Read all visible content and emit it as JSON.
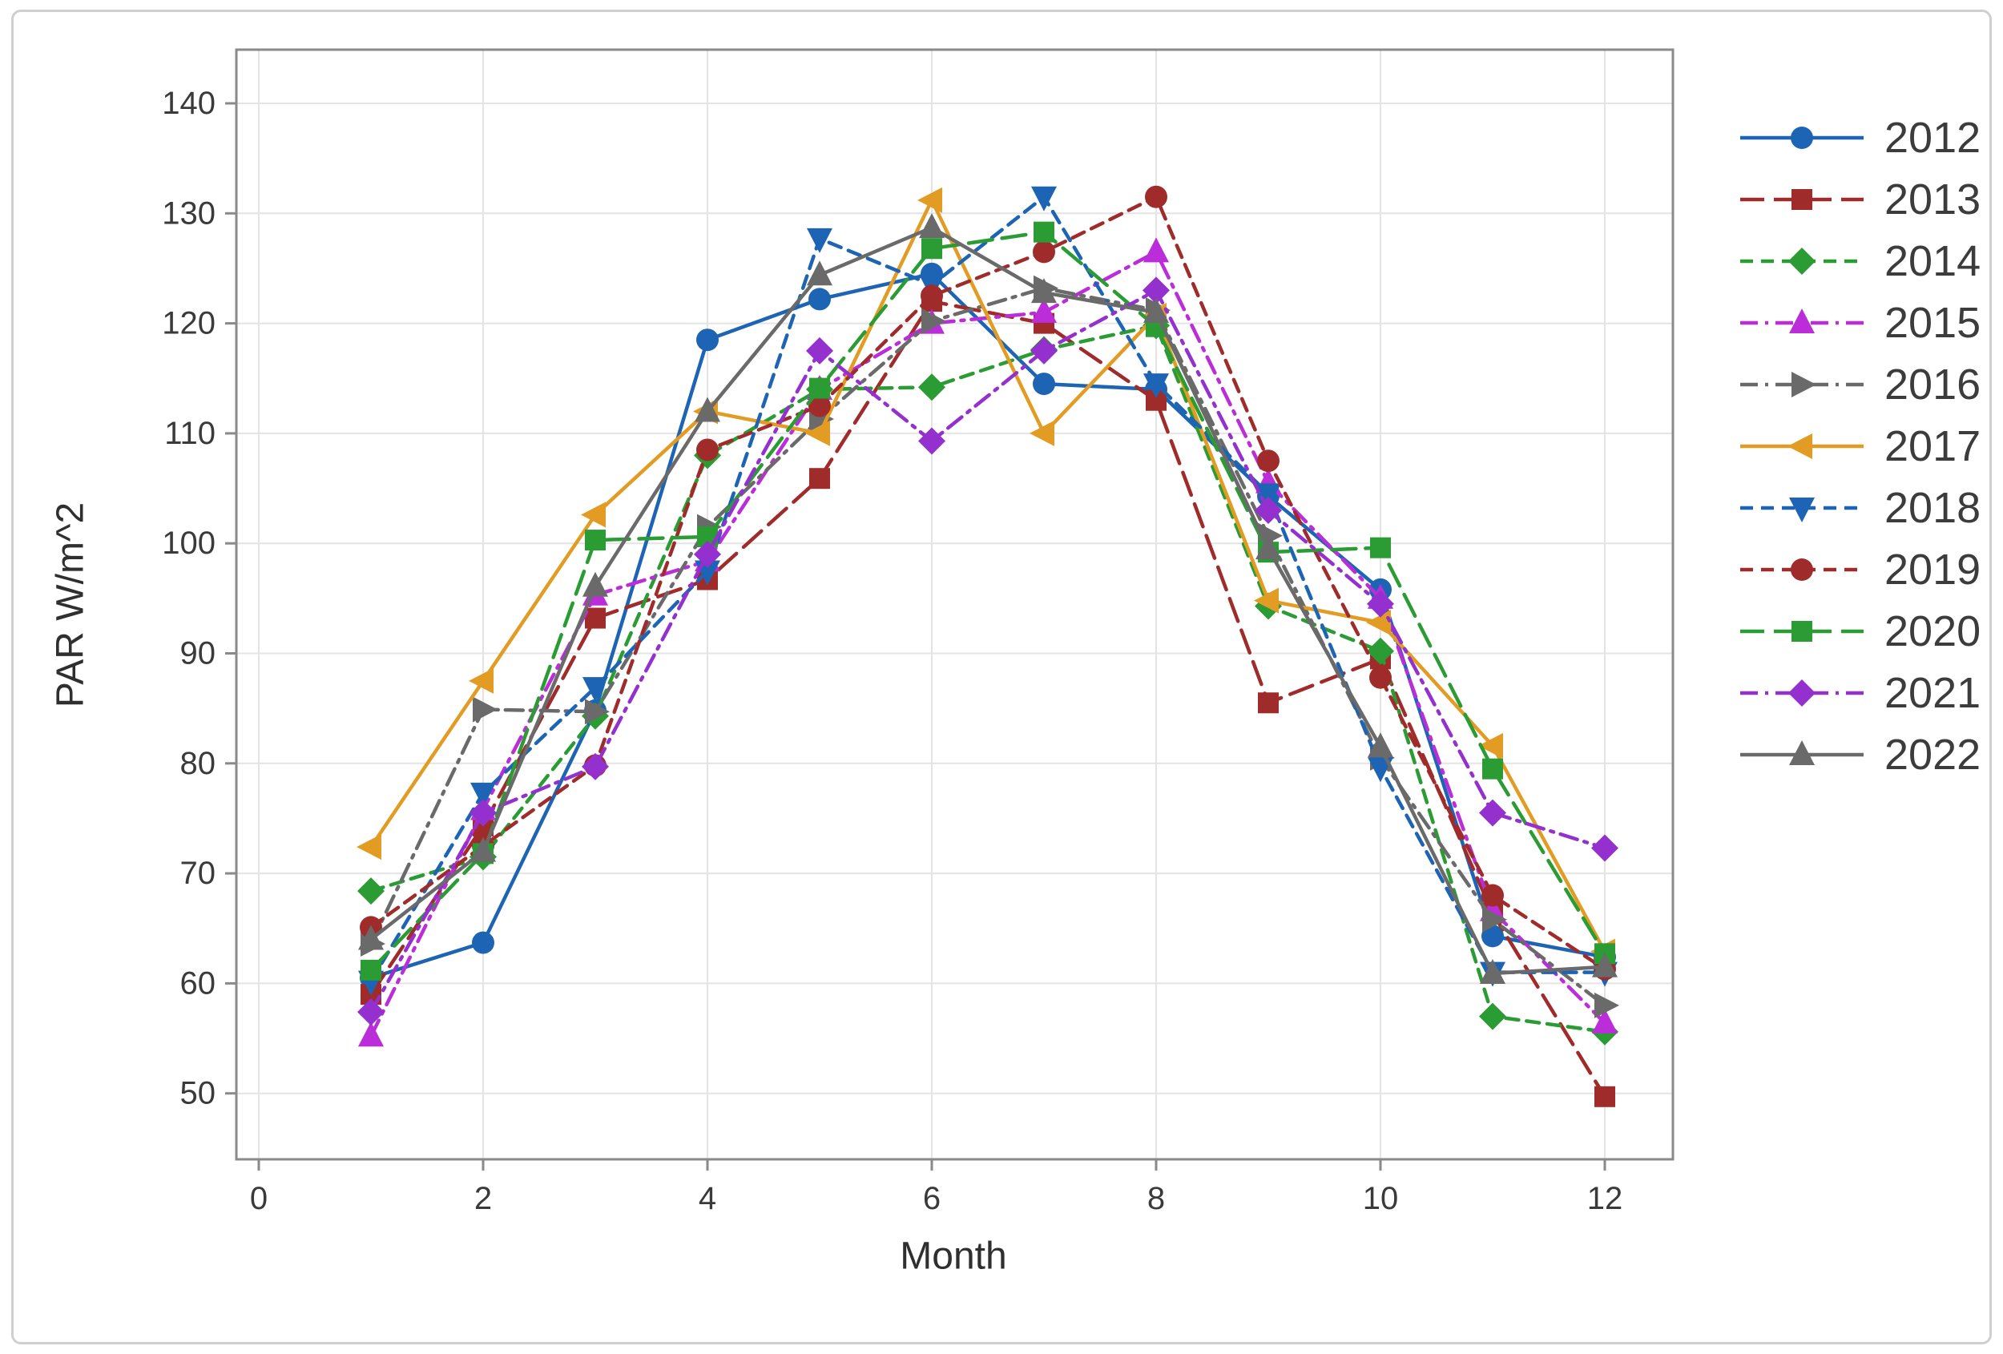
{
  "chart_data": {
    "type": "line",
    "title": "",
    "xlabel": "Month",
    "ylabel": "PAR W/m^2",
    "xlim": [
      -0.2,
      12.6
    ],
    "ylim": [
      44,
      145
    ],
    "xticks": [
      0,
      2,
      4,
      6,
      8,
      10,
      12
    ],
    "yticks": [
      50,
      60,
      70,
      80,
      90,
      100,
      110,
      120,
      130,
      140
    ],
    "grid": true,
    "legend_position": "right",
    "x": [
      1,
      2,
      3,
      4,
      5,
      6,
      7,
      8,
      9,
      10,
      11,
      12
    ],
    "colors": {
      "blue": "#1E64B4",
      "dark_red": "#A02B2B",
      "green": "#2B9B33",
      "magenta": "#BB2DD8",
      "gray": "#6A6A6A",
      "orange": "#E39C23",
      "violet": "#9330CE",
      "grid": "#E4E4E4",
      "plot_border": "#8A8A8A",
      "tick_text": "#3A3A3A",
      "legend_text": "#3C3C3C"
    },
    "series": [
      {
        "name": "2012",
        "color": "#1E64B4",
        "line_style": "solid",
        "marker": "circle",
        "values": [
          60.5,
          63.7,
          84.8,
          118.5,
          122.2,
          124.5,
          114.5,
          114.0,
          104.3,
          95.8,
          64.3,
          62.4
        ]
      },
      {
        "name": "2013",
        "color": "#A02B2B",
        "line_style": "longdash",
        "marker": "square",
        "values": [
          59.0,
          74.3,
          93.2,
          96.7,
          105.9,
          122.0,
          120.0,
          113.0,
          85.5,
          89.5,
          66.4,
          49.7
        ]
      },
      {
        "name": "2014",
        "color": "#2B9B33",
        "line_style": "dash",
        "marker": "diamond",
        "values": [
          68.4,
          71.5,
          84.3,
          108.0,
          114.0,
          114.2,
          117.6,
          119.8,
          94.3,
          90.2,
          57.0,
          55.6
        ]
      },
      {
        "name": "2015",
        "color": "#BB2DD8",
        "line_style": "dashdot",
        "marker": "triangle-up",
        "values": [
          55.2,
          75.8,
          95.3,
          98.4,
          114.0,
          120.0,
          121.0,
          126.5,
          105.5,
          95.0,
          66.6,
          56.4
        ]
      },
      {
        "name": "2016",
        "color": "#6A6A6A",
        "line_style": "dashdot",
        "marker": "triangle-right",
        "values": [
          63.6,
          84.9,
          84.7,
          101.5,
          111.3,
          120.2,
          123.2,
          121.2,
          100.7,
          80.5,
          65.8,
          58.0
        ]
      },
      {
        "name": "2017",
        "color": "#E39C23",
        "line_style": "solid",
        "marker": "triangle-left",
        "values": [
          72.4,
          87.5,
          102.6,
          112.0,
          110.0,
          131.2,
          110.0,
          120.7,
          94.8,
          92.8,
          81.6,
          62.9
        ]
      },
      {
        "name": "2018",
        "color": "#1E64B4",
        "line_style": "dash",
        "marker": "triangle-down",
        "values": [
          60.2,
          77.3,
          86.9,
          97.5,
          127.7,
          123.5,
          131.5,
          114.5,
          104.5,
          79.6,
          61.0,
          61.0
        ]
      },
      {
        "name": "2019",
        "color": "#A02B2B",
        "line_style": "dash",
        "marker": "circle",
        "values": [
          65.1,
          72.5,
          79.8,
          108.5,
          112.5,
          122.5,
          126.5,
          131.5,
          107.5,
          87.8,
          68.0,
          61.3
        ]
      },
      {
        "name": "2020",
        "color": "#2B9B33",
        "line_style": "longdash",
        "marker": "square",
        "values": [
          61.2,
          71.8,
          100.3,
          100.6,
          114.1,
          126.8,
          128.3,
          119.7,
          99.2,
          99.6,
          79.5,
          62.7
        ]
      },
      {
        "name": "2021",
        "color": "#9330CE",
        "line_style": "dashdot",
        "marker": "diamond",
        "values": [
          57.4,
          75.5,
          79.7,
          99.0,
          117.5,
          109.3,
          117.5,
          123.0,
          103.0,
          94.5,
          75.5,
          72.3
        ]
      },
      {
        "name": "2022",
        "color": "#6A6A6A",
        "line_style": "solid",
        "marker": "triangle-up",
        "values": [
          64.0,
          72.0,
          96.1,
          112.0,
          124.4,
          128.7,
          122.8,
          121.0,
          99.5,
          81.5,
          60.9,
          61.5
        ]
      }
    ]
  }
}
